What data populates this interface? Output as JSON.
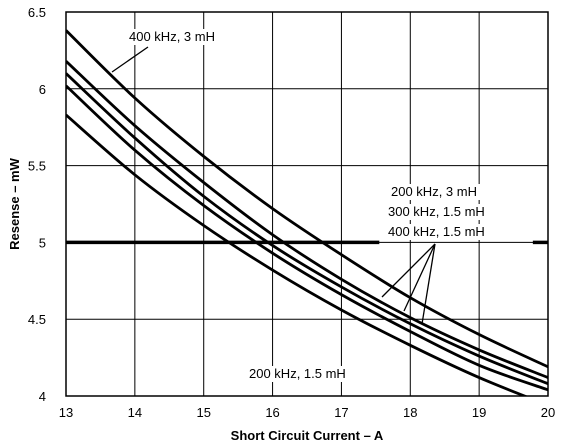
{
  "chart_data": {
    "type": "line",
    "title": "",
    "xlabel": "Short Circuit Current – A",
    "ylabel": "Resense – mW",
    "xlim": [
      13,
      20
    ],
    "ylim": [
      4,
      6.5
    ],
    "x_ticks": [
      "13",
      "14",
      "15",
      "16",
      "17",
      "18",
      "19",
      "20"
    ],
    "y_ticks": [
      "4",
      "4.5",
      "5",
      "5.5",
      "6",
      "6.5"
    ],
    "grid": true,
    "series": [
      {
        "name": "400 kHz, 3 mH",
        "x": [
          13,
          14,
          15,
          16,
          17,
          18,
          19,
          20
        ],
        "y": [
          6.38,
          5.94,
          5.56,
          5.22,
          4.92,
          4.64,
          4.4,
          4.19
        ]
      },
      {
        "name": "200 kHz, 3 mH",
        "x": [
          13,
          14,
          15,
          16,
          17,
          18,
          19,
          20
        ],
        "y": [
          6.18,
          5.76,
          5.39,
          5.05,
          4.76,
          4.51,
          4.3,
          4.12
        ]
      },
      {
        "name": "300 kHz, 1.5 mH",
        "x": [
          13,
          14,
          15,
          16,
          17,
          18,
          19,
          20
        ],
        "y": [
          6.1,
          5.68,
          5.3,
          4.98,
          4.71,
          4.47,
          4.26,
          4.08
        ]
      },
      {
        "name": "400 kHz, 1.5 mH",
        "x": [
          13,
          14,
          15,
          16,
          17,
          18,
          19,
          20
        ],
        "y": [
          6.02,
          5.6,
          5.24,
          4.93,
          4.66,
          4.42,
          4.2,
          4.04
        ]
      },
      {
        "name": "200 kHz, 1.5 mH",
        "x": [
          13,
          14,
          15,
          16,
          17,
          18,
          19,
          20
        ],
        "y": [
          5.83,
          5.44,
          5.11,
          4.82,
          4.56,
          4.33,
          4.12,
          3.94
        ]
      }
    ],
    "reference_line": {
      "y": 5
    },
    "annotations": [
      {
        "text": "400 kHz, 3 mH",
        "target_series": "400 kHz, 3 mH"
      },
      {
        "text": "200 kHz, 3 mH",
        "target_series": "200 kHz, 3 mH"
      },
      {
        "text": "300 kHz, 1.5 mH",
        "target_series": "300 kHz, 1.5 mH"
      },
      {
        "text": "400 kHz, 1.5 mH",
        "target_series": "400 kHz, 1.5 mH"
      },
      {
        "text": "200 kHz, 1.5 mH",
        "target_series": "200 kHz, 1.5 mH"
      }
    ]
  }
}
